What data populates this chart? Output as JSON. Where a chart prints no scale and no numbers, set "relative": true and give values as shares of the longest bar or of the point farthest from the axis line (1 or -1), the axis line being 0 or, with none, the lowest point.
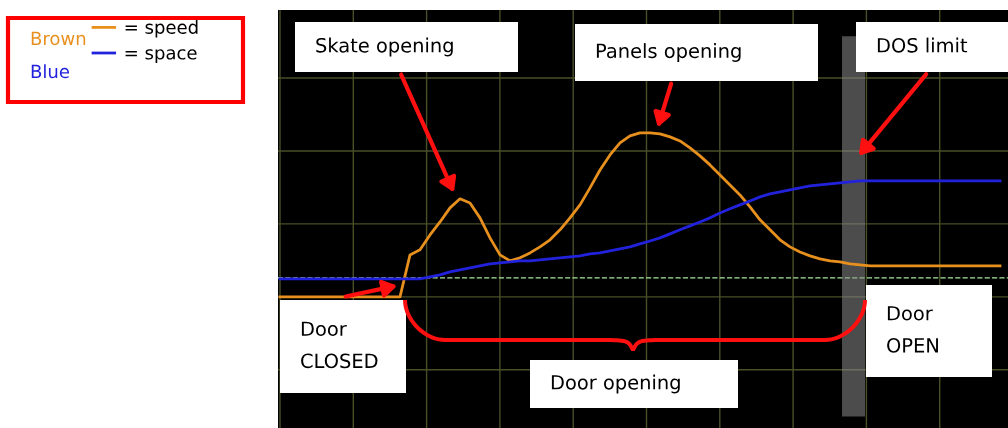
{
  "chart_data": {
    "type": "line",
    "relative": true,
    "grid": true,
    "legend": "top left",
    "categories": [
      null,
      null,
      null,
      null,
      null,
      null,
      null,
      null,
      null,
      null,
      null,
      null,
      null,
      null,
      null,
      null,
      null,
      null,
      null,
      null,
      null,
      null,
      null,
      null,
      null,
      null,
      null,
      null,
      null,
      null,
      null,
      null,
      null,
      null,
      null,
      null,
      null,
      null,
      null,
      null,
      null,
      null,
      null,
      null,
      null,
      null,
      null,
      null,
      null,
      null,
      null,
      null,
      null,
      null,
      null,
      null,
      null,
      null,
      null,
      null,
      null,
      null,
      null,
      null,
      null,
      null,
      null,
      null,
      null,
      null,
      null,
      null,
      null
    ],
    "series": [
      {
        "name": "= speed",
        "color": "#e8901e",
        "values": [
          0,
          0,
          0,
          0,
          0,
          0,
          0,
          0,
          0,
          0,
          0,
          0,
          0,
          0.256,
          0.287,
          0.378,
          0.457,
          0.543,
          0.598,
          0.573,
          0.482,
          0.36,
          0.256,
          0.22,
          0.238,
          0.268,
          0.305,
          0.348,
          0.409,
          0.482,
          0.561,
          0.665,
          0.774,
          0.866,
          0.939,
          0.982,
          1,
          1,
          0.994,
          0.976,
          0.951,
          0.909,
          0.86,
          0.805,
          0.744,
          0.683,
          0.622,
          0.549,
          0.47,
          0.409,
          0.348,
          0.305,
          0.274,
          0.25,
          0.232,
          0.22,
          0.213,
          0.201,
          0.195,
          0.189,
          0.189,
          0.189,
          0.189,
          0.189,
          0.189,
          0.189,
          0.189,
          0.189,
          0.189,
          0.189,
          0.189,
          0.189,
          0.189
        ]
      },
      {
        "name": "= space",
        "color": "#2222dd",
        "values": [
          0.11,
          0.11,
          0.11,
          0.11,
          0.11,
          0.11,
          0.11,
          0.11,
          0.11,
          0.11,
          0.11,
          0.11,
          0.11,
          0.11,
          0.11,
          0.122,
          0.134,
          0.152,
          0.165,
          0.177,
          0.189,
          0.201,
          0.207,
          0.213,
          0.22,
          0.22,
          0.226,
          0.232,
          0.238,
          0.244,
          0.25,
          0.262,
          0.268,
          0.28,
          0.293,
          0.305,
          0.323,
          0.341,
          0.36,
          0.384,
          0.409,
          0.433,
          0.457,
          0.482,
          0.512,
          0.537,
          0.561,
          0.585,
          0.61,
          0.628,
          0.64,
          0.652,
          0.665,
          0.677,
          0.683,
          0.689,
          0.695,
          0.701,
          0.707,
          0.707,
          0.707,
          0.707,
          0.707,
          0.707,
          0.707,
          0.707,
          0.707,
          0.707,
          0.707,
          0.707,
          0.707,
          0.707,
          0.707
        ]
      }
    ],
    "ref_lines": [
      {
        "axis": "y",
        "value": 0.116,
        "color": "#a8e8a0",
        "line_style": "dashed"
      }
    ],
    "annotations": [
      "Brown",
      "Blue",
      "Skate opening",
      "Panels opening",
      "DOS limit",
      "Door\nCLOSED",
      "Door opening",
      "Door\nOPEN"
    ]
  }
}
